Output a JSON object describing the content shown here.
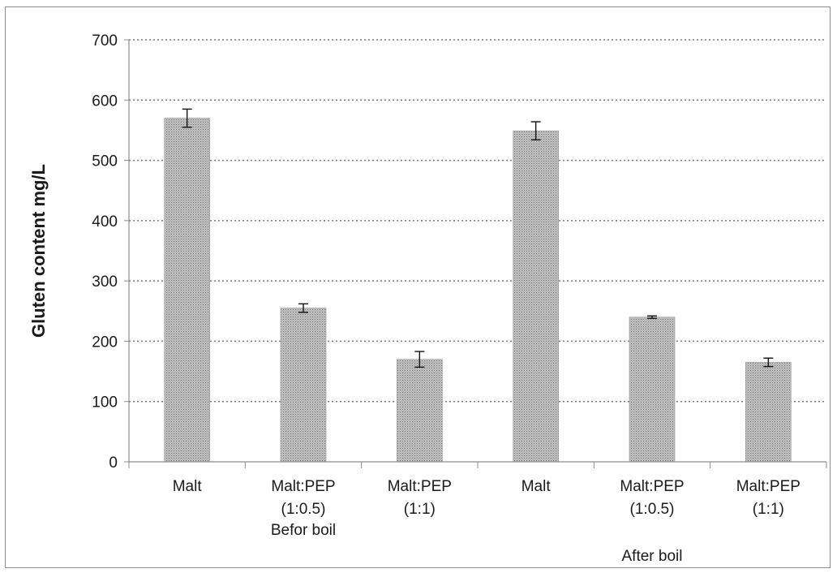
{
  "chart_data": {
    "type": "bar",
    "title": "",
    "ylabel": "Gluten content  mg/L",
    "xlabel": "",
    "ylim": [
      0,
      700
    ],
    "yticks": [
      0,
      100,
      200,
      300,
      400,
      500,
      600,
      700
    ],
    "grid": true,
    "legend": "none",
    "categories": [
      {
        "line1": "Malt",
        "line2": ""
      },
      {
        "line1": "Malt:PEP",
        "line2": "(1:0.5)"
      },
      {
        "line1": "Malt:PEP",
        "line2": "(1:1)"
      },
      {
        "line1": "Malt",
        "line2": ""
      },
      {
        "line1": "Malt:PEP",
        "line2": "(1:0.5)"
      },
      {
        "line1": "Malt:PEP",
        "line2": "(1:1)"
      }
    ],
    "groups": [
      {
        "label": "Befor boil",
        "span": [
          0,
          2
        ]
      },
      {
        "label": "After boil",
        "span": [
          3,
          5
        ]
      }
    ],
    "values": [
      570,
      255,
      170,
      549,
      240,
      165
    ],
    "errors": [
      15,
      7,
      13,
      15,
      2,
      7
    ],
    "bar_color": "#a6a6a6"
  }
}
